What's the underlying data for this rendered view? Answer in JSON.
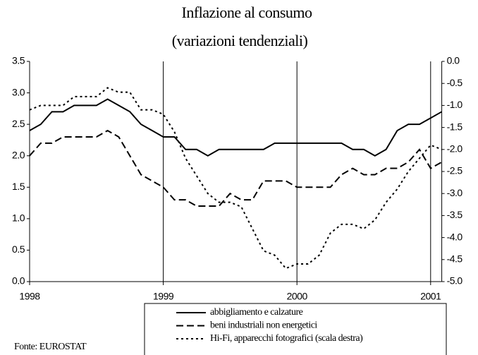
{
  "chart_data": {
    "type": "line",
    "title": "Inflazione al consumo",
    "subtitle": "(variazioni tendenziali)",
    "source": "Fonte: EUROSTAT",
    "categories": [
      "1998",
      null,
      null,
      null,
      null,
      null,
      null,
      null,
      null,
      null,
      null,
      null,
      "1999",
      null,
      null,
      null,
      null,
      null,
      null,
      null,
      null,
      null,
      null,
      null,
      "2000",
      null,
      null,
      null,
      null,
      null,
      null,
      null,
      null,
      null,
      null,
      null,
      "2001",
      null
    ],
    "series": [
      {
        "name": "abbigliamento e calzature",
        "color": "#000000",
        "dash": "solid",
        "values": [
          2.4,
          2.5,
          2.7,
          2.7,
          2.8,
          2.8,
          2.8,
          2.9,
          2.8,
          2.7,
          2.5,
          2.4,
          2.3,
          2.3,
          2.1,
          2.1,
          2.0,
          2.1,
          2.1,
          2.1,
          2.1,
          2.1,
          2.2,
          2.2,
          2.2,
          2.2,
          2.2,
          2.2,
          2.2,
          2.1,
          2.1,
          2.0,
          2.1,
          2.4,
          2.5,
          2.5,
          2.6,
          2.7
        ]
      },
      {
        "name": "beni industriali non energetici",
        "color": "#000000",
        "dash": "dashed",
        "values": [
          2.0,
          2.2,
          2.2,
          2.3,
          2.3,
          2.3,
          2.3,
          2.4,
          2.3,
          2.0,
          1.7,
          1.6,
          1.5,
          1.3,
          1.3,
          1.2,
          1.2,
          1.2,
          1.4,
          1.3,
          1.3,
          1.6,
          1.6,
          1.6,
          1.5,
          1.5,
          1.5,
          1.5,
          1.7,
          1.8,
          1.7,
          1.7,
          1.8,
          1.8,
          1.9,
          2.1,
          1.8,
          1.9
        ]
      },
      {
        "name": "Hi-Fi, apparecchi fotografici (scala destra)",
        "color": "#000000",
        "dash": "dotted",
        "axis": "y2",
        "values": [
          -1.1,
          -1.0,
          -1.0,
          -1.0,
          -0.8,
          -0.8,
          -0.8,
          -0.6,
          -0.7,
          -0.7,
          -1.1,
          -1.1,
          -1.2,
          -1.6,
          -2.2,
          -2.6,
          -3.0,
          -3.2,
          -3.2,
          -3.3,
          -3.8,
          -4.3,
          -4.4,
          -4.7,
          -4.6,
          -4.6,
          -4.4,
          -3.9,
          -3.7,
          -3.7,
          -3.8,
          -3.6,
          -3.2,
          -2.9,
          -2.5,
          -2.2,
          -1.9,
          -2.0
        ]
      }
    ],
    "ylim": [
      0,
      3.5
    ],
    "yticks": [
      {
        "value": 0,
        "label": "0.0"
      },
      0.5,
      {
        "value": 1,
        "label": "1.0"
      },
      1.5,
      {
        "value": 2,
        "label": "2.0"
      },
      2.5,
      {
        "value": 3,
        "label": "3.0"
      },
      3.5
    ],
    "y2lim": [
      -5,
      0
    ],
    "y2ticks": [
      {
        "value": 0,
        "label": "0.0"
      },
      -0.5,
      {
        "value": -1,
        "label": "-1.0"
      },
      -1.5,
      {
        "value": -2,
        "label": "-2.0"
      },
      -2.5,
      {
        "value": -3,
        "label": "-3.0"
      },
      -3.5,
      {
        "value": -4,
        "label": "-4.0"
      },
      -4.5,
      {
        "value": -5,
        "label": "-5.0"
      }
    ],
    "grid": false,
    "legend": "bottom"
  }
}
